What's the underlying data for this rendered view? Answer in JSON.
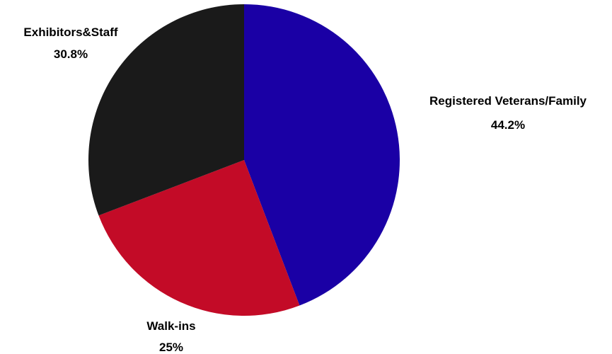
{
  "chart_data": {
    "type": "pie",
    "start_angle_deg": 0,
    "direction": "clockwise",
    "slices": [
      {
        "label": "Registered Veterans/Family",
        "value": 44.2,
        "value_label": "44.2%",
        "color": "#1a00a5"
      },
      {
        "label": "Walk-ins",
        "value": 25,
        "value_label": "25%",
        "color": "#c30b27"
      },
      {
        "label": "Exhibitors&Staff",
        "value": 30.8,
        "value_label": "30.8%",
        "color": "#1a1a1a"
      }
    ]
  }
}
